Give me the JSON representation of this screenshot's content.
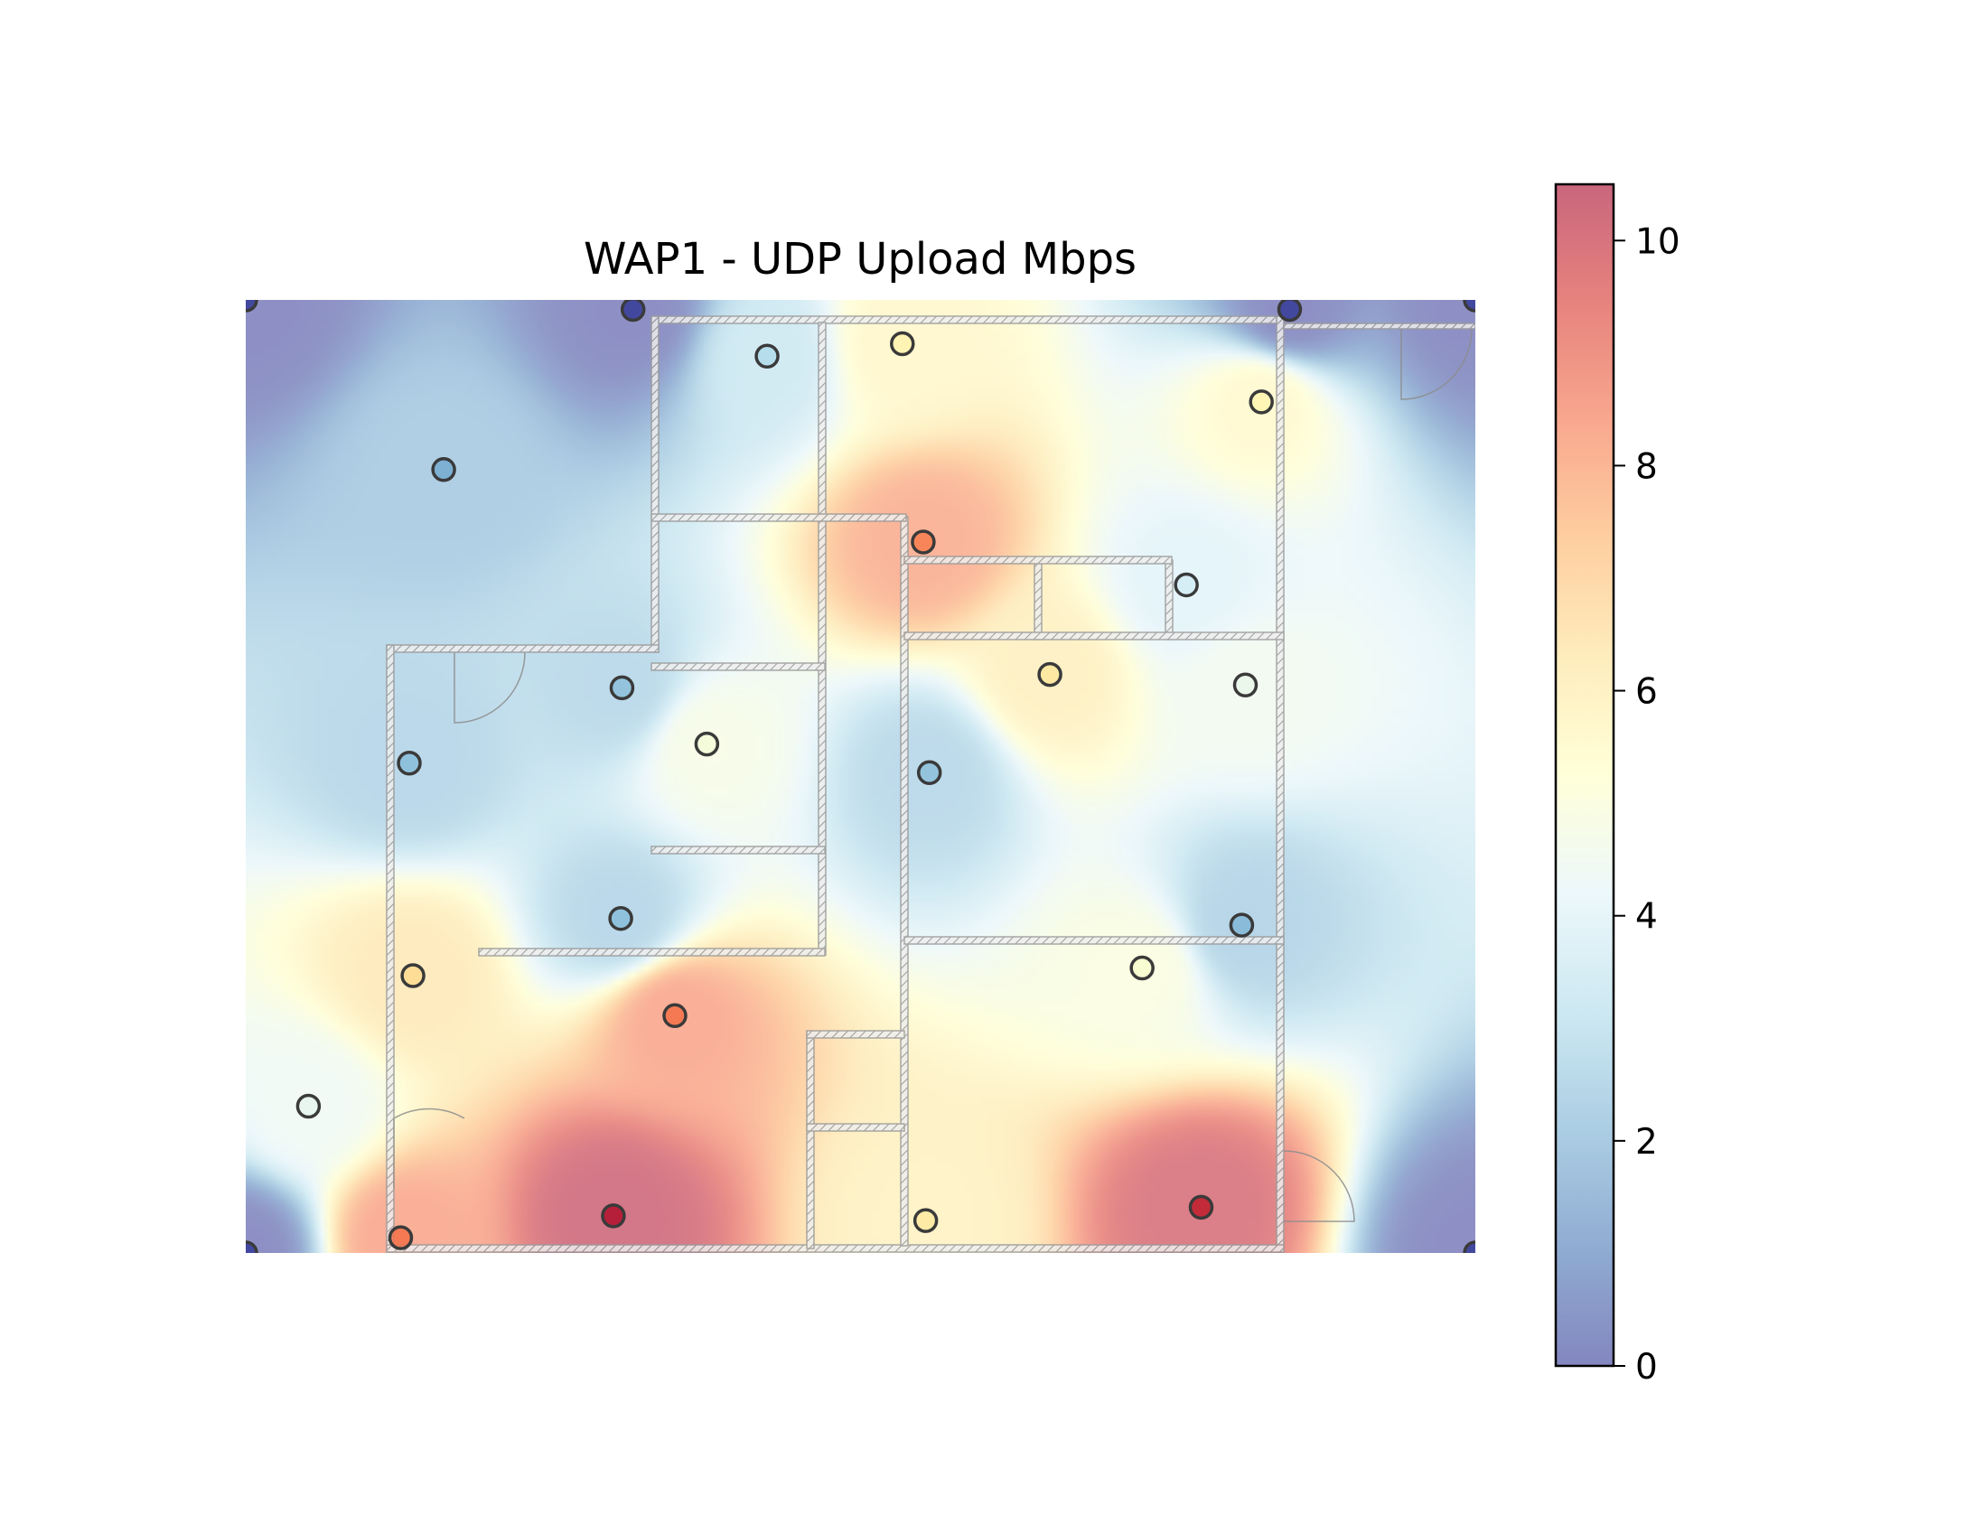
{
  "chart_data": {
    "type": "heatmap",
    "title": "WAP1 - UDP Upload Mbps",
    "xlabel": "",
    "ylabel": "",
    "xlim": [
      0,
      100
    ],
    "ylim": [
      0,
      100
    ],
    "grid": false,
    "colormap": "RdYlBu_r",
    "colorbar": {
      "range": [
        0,
        10.5
      ],
      "ticks": [
        0,
        2,
        4,
        6,
        8,
        10
      ],
      "tick_labels": [
        "0",
        "2",
        "4",
        "6",
        "8",
        "10"
      ],
      "placement": "right"
    },
    "points": [
      {
        "x": 0.0,
        "y": 100.0,
        "value": 0.0
      },
      {
        "x": 31.5,
        "y": 99.0,
        "value": 0.0
      },
      {
        "x": 84.9,
        "y": 99.0,
        "value": 0.0
      },
      {
        "x": 100.0,
        "y": 100.0,
        "value": 0.0
      },
      {
        "x": 42.4,
        "y": 94.1,
        "value": 3.2
      },
      {
        "x": 53.4,
        "y": 95.4,
        "value": 5.7
      },
      {
        "x": 82.6,
        "y": 89.3,
        "value": 5.6
      },
      {
        "x": 16.1,
        "y": 82.2,
        "value": 2.0
      },
      {
        "x": 55.1,
        "y": 74.6,
        "value": 8.2
      },
      {
        "x": 76.5,
        "y": 70.1,
        "value": 3.9
      },
      {
        "x": 30.6,
        "y": 59.3,
        "value": 2.5
      },
      {
        "x": 65.4,
        "y": 60.7,
        "value": 6.1
      },
      {
        "x": 81.3,
        "y": 59.6,
        "value": 4.5
      },
      {
        "x": 37.5,
        "y": 53.4,
        "value": 4.8
      },
      {
        "x": 13.3,
        "y": 51.4,
        "value": 2.4
      },
      {
        "x": 55.6,
        "y": 50.4,
        "value": 2.5
      },
      {
        "x": 30.5,
        "y": 35.1,
        "value": 2.4
      },
      {
        "x": 81.0,
        "y": 34.4,
        "value": 2.3
      },
      {
        "x": 13.6,
        "y": 29.1,
        "value": 6.4
      },
      {
        "x": 72.9,
        "y": 29.9,
        "value": 5.0
      },
      {
        "x": 34.9,
        "y": 24.9,
        "value": 8.4
      },
      {
        "x": 5.1,
        "y": 15.4,
        "value": 4.4
      },
      {
        "x": 29.9,
        "y": 3.9,
        "value": 10.3
      },
      {
        "x": 55.3,
        "y": 3.4,
        "value": 6.0
      },
      {
        "x": 77.7,
        "y": 4.8,
        "value": 10.0
      },
      {
        "x": 12.6,
        "y": 1.6,
        "value": 8.4
      },
      {
        "x": 0.0,
        "y": 0.0,
        "value": 0.0
      },
      {
        "x": 100.0,
        "y": 0.0,
        "value": 0.0
      }
    ]
  }
}
